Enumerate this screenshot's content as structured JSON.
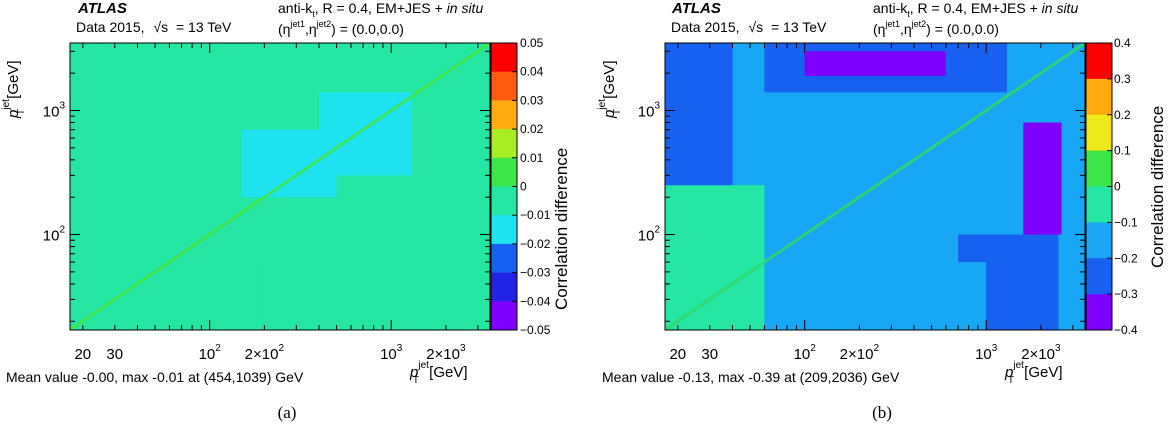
{
  "panels": [
    {
      "experiment": "ATLAS",
      "dataset": "Data 2015,",
      "energy_label": "s",
      "energy_value": "= 13 TeV",
      "calib_prefix": "anti-k",
      "calib_sub": "t",
      "calib_r": ", R = 0.4, EM+JES + ",
      "calib_insitu": "in situ",
      "eta_label": "(η",
      "eta_sup1": "jet1",
      "eta_comma": ",η",
      "eta_sup2": "jet2",
      "eta_value": ") = (0.0,0.0)",
      "summary": "Mean value -0.00, max -0.01 at (454,1039) GeV",
      "caption": "(a)",
      "chart_data": {
        "type": "heatmap",
        "xlabel_main": "p",
        "xlabel_sup": "jet",
        "xlabel_sub": "T",
        "xlabel_unit": " [GeV]",
        "ylabel_main": "p",
        "ylabel_sup": "jet",
        "ylabel_sub": "T",
        "ylabel_unit": " [GeV]",
        "zlabel": "Correlation difference",
        "xlim": [
          17,
          3500
        ],
        "ylim": [
          17,
          3500
        ],
        "log_x": true,
        "log_y": true,
        "x_ticklabels": [
          {
            "value": 20,
            "text": "20"
          },
          {
            "value": 30,
            "text": "30"
          },
          {
            "value": 100,
            "base": "10",
            "exp": "2"
          },
          {
            "value": 200,
            "base": "2×10",
            "exp": "2"
          },
          {
            "value": 1000,
            "base": "10",
            "exp": "3"
          },
          {
            "value": 2000,
            "base": "2×10",
            "exp": "3"
          }
        ],
        "y_ticklabels": [
          {
            "value": 100,
            "base": "10",
            "exp": "2"
          },
          {
            "value": 1000,
            "base": "10",
            "exp": "3"
          }
        ],
        "zlim": [
          -0.05,
          0.05
        ],
        "z_ticks": [
          "0.05",
          "0.04",
          "0.03",
          "0.02",
          "0.01",
          "0",
          "−0.01",
          "−0.02",
          "−0.03",
          "−0.04",
          "−0.05"
        ],
        "mean": -0.0,
        "max_value": -0.01,
        "max_at": [
          454,
          1039
        ],
        "regions": [
          {
            "x": [
              17,
              3500
            ],
            "y": [
              17,
              3500
            ],
            "z": -0.005
          },
          {
            "x": [
              25,
              80
            ],
            "y": [
              200,
              2500
            ],
            "z": -0.008
          },
          {
            "x": [
              400,
              1300
            ],
            "y": [
              300,
              1400
            ],
            "z": -0.013
          },
          {
            "x": [
              700,
              1100
            ],
            "y": [
              500,
              900
            ],
            "z": -0.016
          },
          {
            "x": [
              150,
              500
            ],
            "y": [
              200,
              700
            ],
            "z": -0.01
          },
          {
            "x": [
              60,
              180
            ],
            "y": [
              17,
              60
            ],
            "z": -0.009
          }
        ]
      }
    },
    {
      "experiment": "ATLAS",
      "dataset": "Data 2015,",
      "energy_label": "s",
      "energy_value": "= 13 TeV",
      "calib_prefix": "anti-k",
      "calib_sub": "t",
      "calib_r": ", R = 0.4, EM+JES + ",
      "calib_insitu": "in situ",
      "eta_label": "(η",
      "eta_sup1": "jet1",
      "eta_comma": ",η",
      "eta_sup2": "jet2",
      "eta_value": ") = (0.0,0.0)",
      "summary": "Mean value -0.13, max -0.39 at (209,2036) GeV",
      "caption": "(b)",
      "chart_data": {
        "type": "heatmap",
        "xlabel_main": "p",
        "xlabel_sup": "jet",
        "xlabel_sub": "T",
        "xlabel_unit": " [GeV]",
        "ylabel_main": "p",
        "ylabel_sup": "jet",
        "ylabel_sub": "T",
        "ylabel_unit": " [GeV]",
        "zlabel": "Correlation difference",
        "xlim": [
          17,
          3500
        ],
        "ylim": [
          17,
          3500
        ],
        "log_x": true,
        "log_y": true,
        "x_ticklabels": [
          {
            "value": 20,
            "text": "20"
          },
          {
            "value": 30,
            "text": "30"
          },
          {
            "value": 100,
            "base": "10",
            "exp": "2"
          },
          {
            "value": 200,
            "base": "2×10",
            "exp": "2"
          },
          {
            "value": 1000,
            "base": "10",
            "exp": "3"
          },
          {
            "value": 2000,
            "base": "2×10",
            "exp": "3"
          }
        ],
        "y_ticklabels": [
          {
            "value": 100,
            "base": "10",
            "exp": "2"
          },
          {
            "value": 1000,
            "base": "10",
            "exp": "3"
          }
        ],
        "zlim": [
          -0.4,
          0.4
        ],
        "z_ticks": [
          "0.4",
          "0.3",
          "0.2",
          "0.1",
          "0",
          "−0.1",
          "−0.2",
          "−0.3",
          "−0.4"
        ],
        "mean": -0.13,
        "max_value": -0.39,
        "max_at": [
          209,
          2036
        ],
        "regions": [
          {
            "x": [
              17,
              3500
            ],
            "y": [
              17,
              3500
            ],
            "z": -0.15
          },
          {
            "x": [
              17,
              60
            ],
            "y": [
              17,
              250
            ],
            "z": -0.06
          },
          {
            "x": [
              17,
              40
            ],
            "y": [
              250,
              3500
            ],
            "z": -0.22
          },
          {
            "x": [
              60,
              1300
            ],
            "y": [
              1400,
              3500
            ],
            "z": -0.25
          },
          {
            "x": [
              100,
              600
            ],
            "y": [
              1900,
              3000
            ],
            "z": -0.36
          },
          {
            "x": [
              700,
              2500
            ],
            "y": [
              17,
              100
            ],
            "z": -0.22
          },
          {
            "x": [
              1300,
              2500
            ],
            "y": [
              17,
              60
            ],
            "z": -0.3
          },
          {
            "x": [
              1600,
              2600
            ],
            "y": [
              100,
              800
            ],
            "z": -0.33
          },
          {
            "x": [
              2000,
              2400
            ],
            "y": [
              100,
              600
            ],
            "z": -0.39
          },
          {
            "x": [
              300,
              1000
            ],
            "y": [
              17,
              60
            ],
            "z": -0.19
          }
        ]
      }
    }
  ]
}
